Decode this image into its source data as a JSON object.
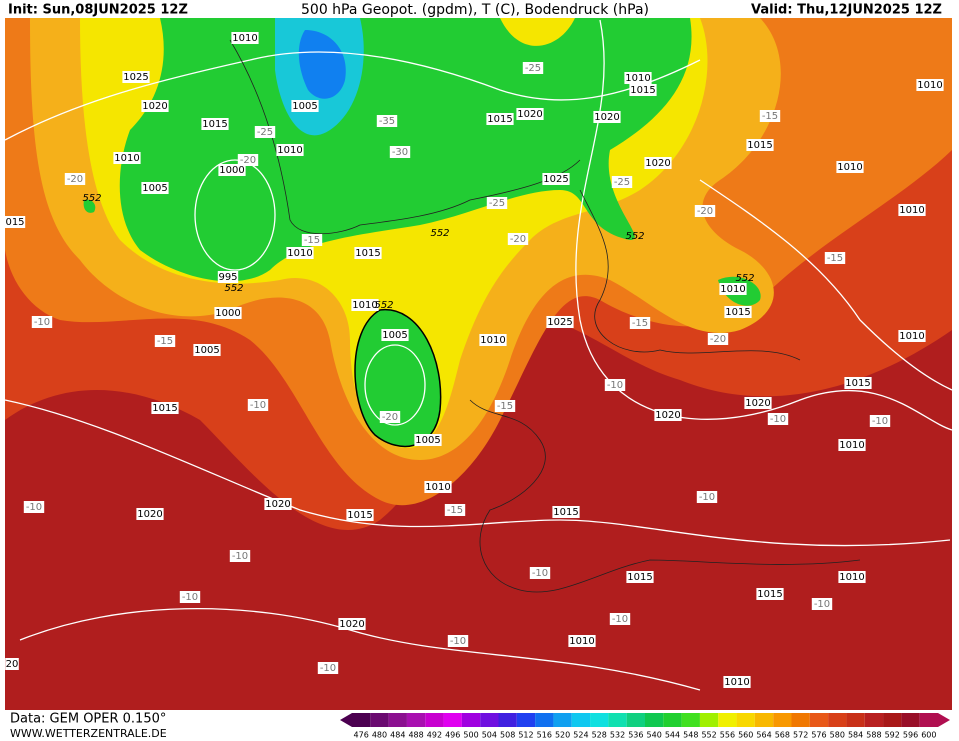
{
  "header": {
    "init": "Init: Sun,08JUN2025 12Z",
    "title": "500 hPa Geopot. (gpdm), T (C), Bodendruck (hPa)",
    "valid": "Valid: Thu,12JUN2025 12Z"
  },
  "footer": {
    "data": "Data: GEM OPER 0.150°",
    "site": "WWW.WETTERZENTRALE.DE"
  },
  "map": {
    "isobar_labels": [
      "1010",
      "1025",
      "1020",
      "1015",
      "1010",
      "1005",
      "1010",
      "1005",
      "1000",
      "995",
      "1000",
      "1005",
      "1015",
      "1010",
      "1015",
      "1010",
      "1005",
      "1005",
      "1010",
      "1025",
      "1025",
      "1015",
      "1020",
      "1020",
      "1020",
      "1010",
      "1015",
      "1015",
      "1010",
      "1010",
      "1010",
      "1010",
      "1015",
      "1020",
      "1020",
      "1015",
      "1010",
      "1010",
      "1010",
      "1015",
      "1015",
      "1020",
      "1020",
      "1020",
      "1015",
      "1015",
      "1010",
      "1010",
      "1010",
      "015",
      "20"
    ],
    "temperature_labels": [
      "-25",
      "-35",
      "-30",
      "-25",
      "-20",
      "-20",
      "-15",
      "-25",
      "-20",
      "-25",
      "-15",
      "-20",
      "-15",
      "-10",
      "-15",
      "-15",
      "-20",
      "-10",
      "-20",
      "-15",
      "-10",
      "-10",
      "-10",
      "-10",
      "-15",
      "-10",
      "-10",
      "-10",
      "-10",
      "-10",
      "-10",
      "-10",
      "-10"
    ],
    "height_labels": [
      "552",
      "552",
      "552",
      "552",
      "552",
      "552"
    ]
  },
  "scale": {
    "values": [
      476,
      480,
      484,
      488,
      492,
      496,
      500,
      504,
      508,
      512,
      516,
      520,
      524,
      528,
      532,
      536,
      540,
      544,
      548,
      552,
      556,
      560,
      564,
      568,
      572,
      576,
      580,
      584,
      588,
      592,
      596,
      600
    ],
    "colors": [
      "#4b0050",
      "#6a0a70",
      "#8b1090",
      "#a810b0",
      "#c800d0",
      "#e000f0",
      "#a000e0",
      "#7010e0",
      "#4020e0",
      "#2040f0",
      "#1070f0",
      "#10a0f0",
      "#10c8f0",
      "#10e0e0",
      "#10e0b0",
      "#10d080",
      "#10c850",
      "#20d030",
      "#40e020",
      "#a0f000",
      "#f0f000",
      "#f8d800",
      "#f8b800",
      "#f89800",
      "#f07800",
      "#e85818",
      "#d84018",
      "#c83018",
      "#b82020",
      "#a81818",
      "#980f28",
      "#b00f50"
    ]
  }
}
